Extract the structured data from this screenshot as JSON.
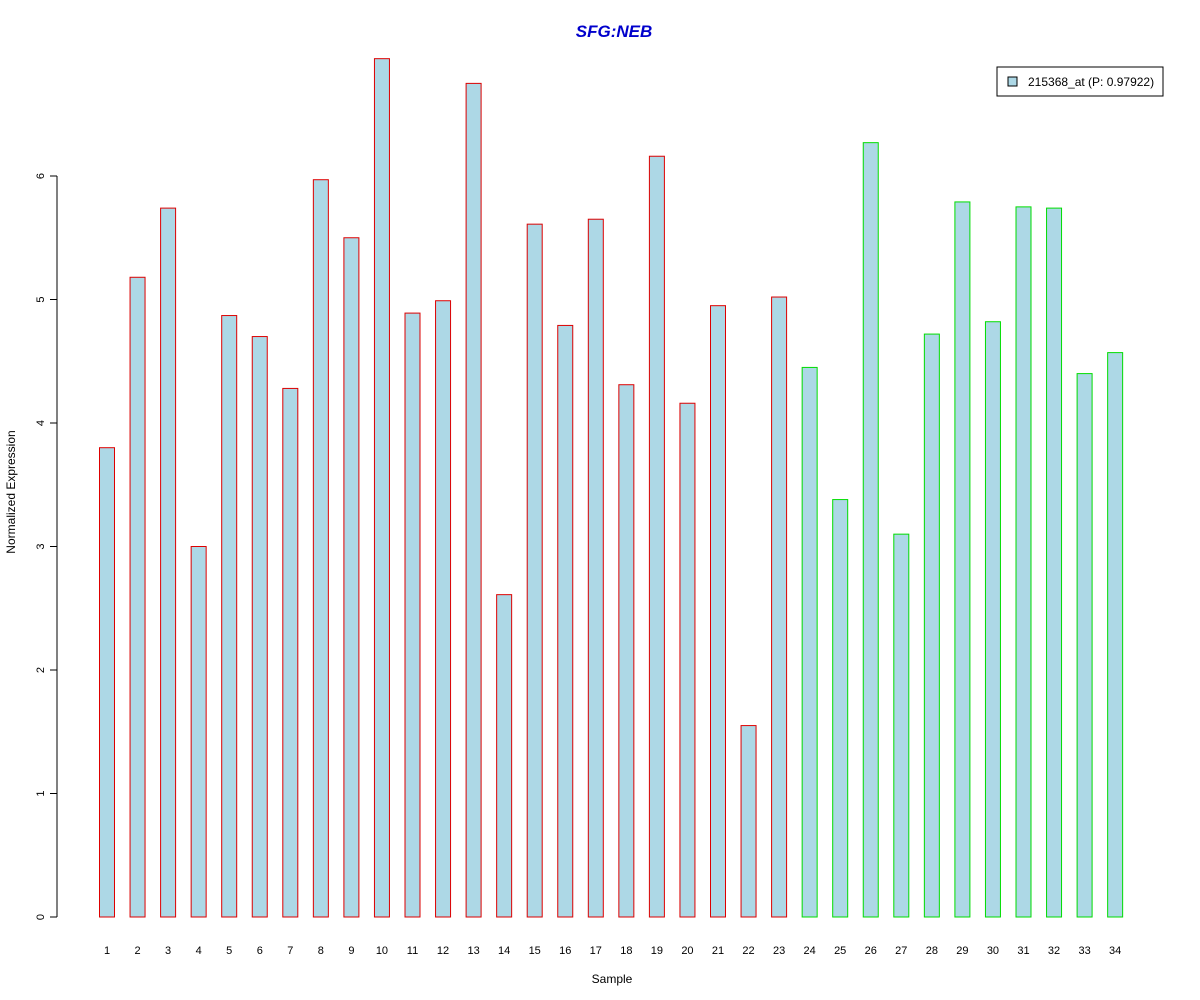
{
  "chart_data": {
    "type": "bar",
    "title": "SFG:NEB",
    "xlabel": "Sample",
    "ylabel": "Normalized Expression",
    "ylim": [
      0,
      7
    ],
    "yticks": [
      0,
      1,
      2,
      3,
      4,
      5,
      6
    ],
    "grid": false,
    "legend_position": "top-right",
    "legend": [
      {
        "label": "215368_at (P: 0.97922)",
        "fill": "#add8e6"
      }
    ],
    "colors": {
      "bar_fill": "#add8e6",
      "group1_border": "#dd0000",
      "group2_border": "#00dd00",
      "title": "#0000cc"
    },
    "categories": [
      "1",
      "2",
      "3",
      "4",
      "5",
      "6",
      "7",
      "8",
      "9",
      "10",
      "11",
      "12",
      "13",
      "14",
      "15",
      "16",
      "17",
      "18",
      "19",
      "20",
      "21",
      "22",
      "23",
      "24",
      "25",
      "26",
      "27",
      "28",
      "29",
      "30",
      "31",
      "32",
      "33",
      "34"
    ],
    "values": [
      3.8,
      5.18,
      5.74,
      3.0,
      4.87,
      4.7,
      4.28,
      5.97,
      5.5,
      6.95,
      4.89,
      4.99,
      6.75,
      2.61,
      5.61,
      4.79,
      5.65,
      4.31,
      6.16,
      4.16,
      4.95,
      1.55,
      5.02,
      4.45,
      3.38,
      6.27,
      3.1,
      4.72,
      5.79,
      4.82,
      5.75,
      5.74,
      4.4,
      4.57
    ],
    "groups": [
      1,
      1,
      1,
      1,
      1,
      1,
      1,
      1,
      1,
      1,
      1,
      1,
      1,
      1,
      1,
      1,
      1,
      1,
      1,
      1,
      1,
      1,
      1,
      2,
      2,
      2,
      2,
      2,
      2,
      2,
      2,
      2,
      2,
      2
    ]
  }
}
